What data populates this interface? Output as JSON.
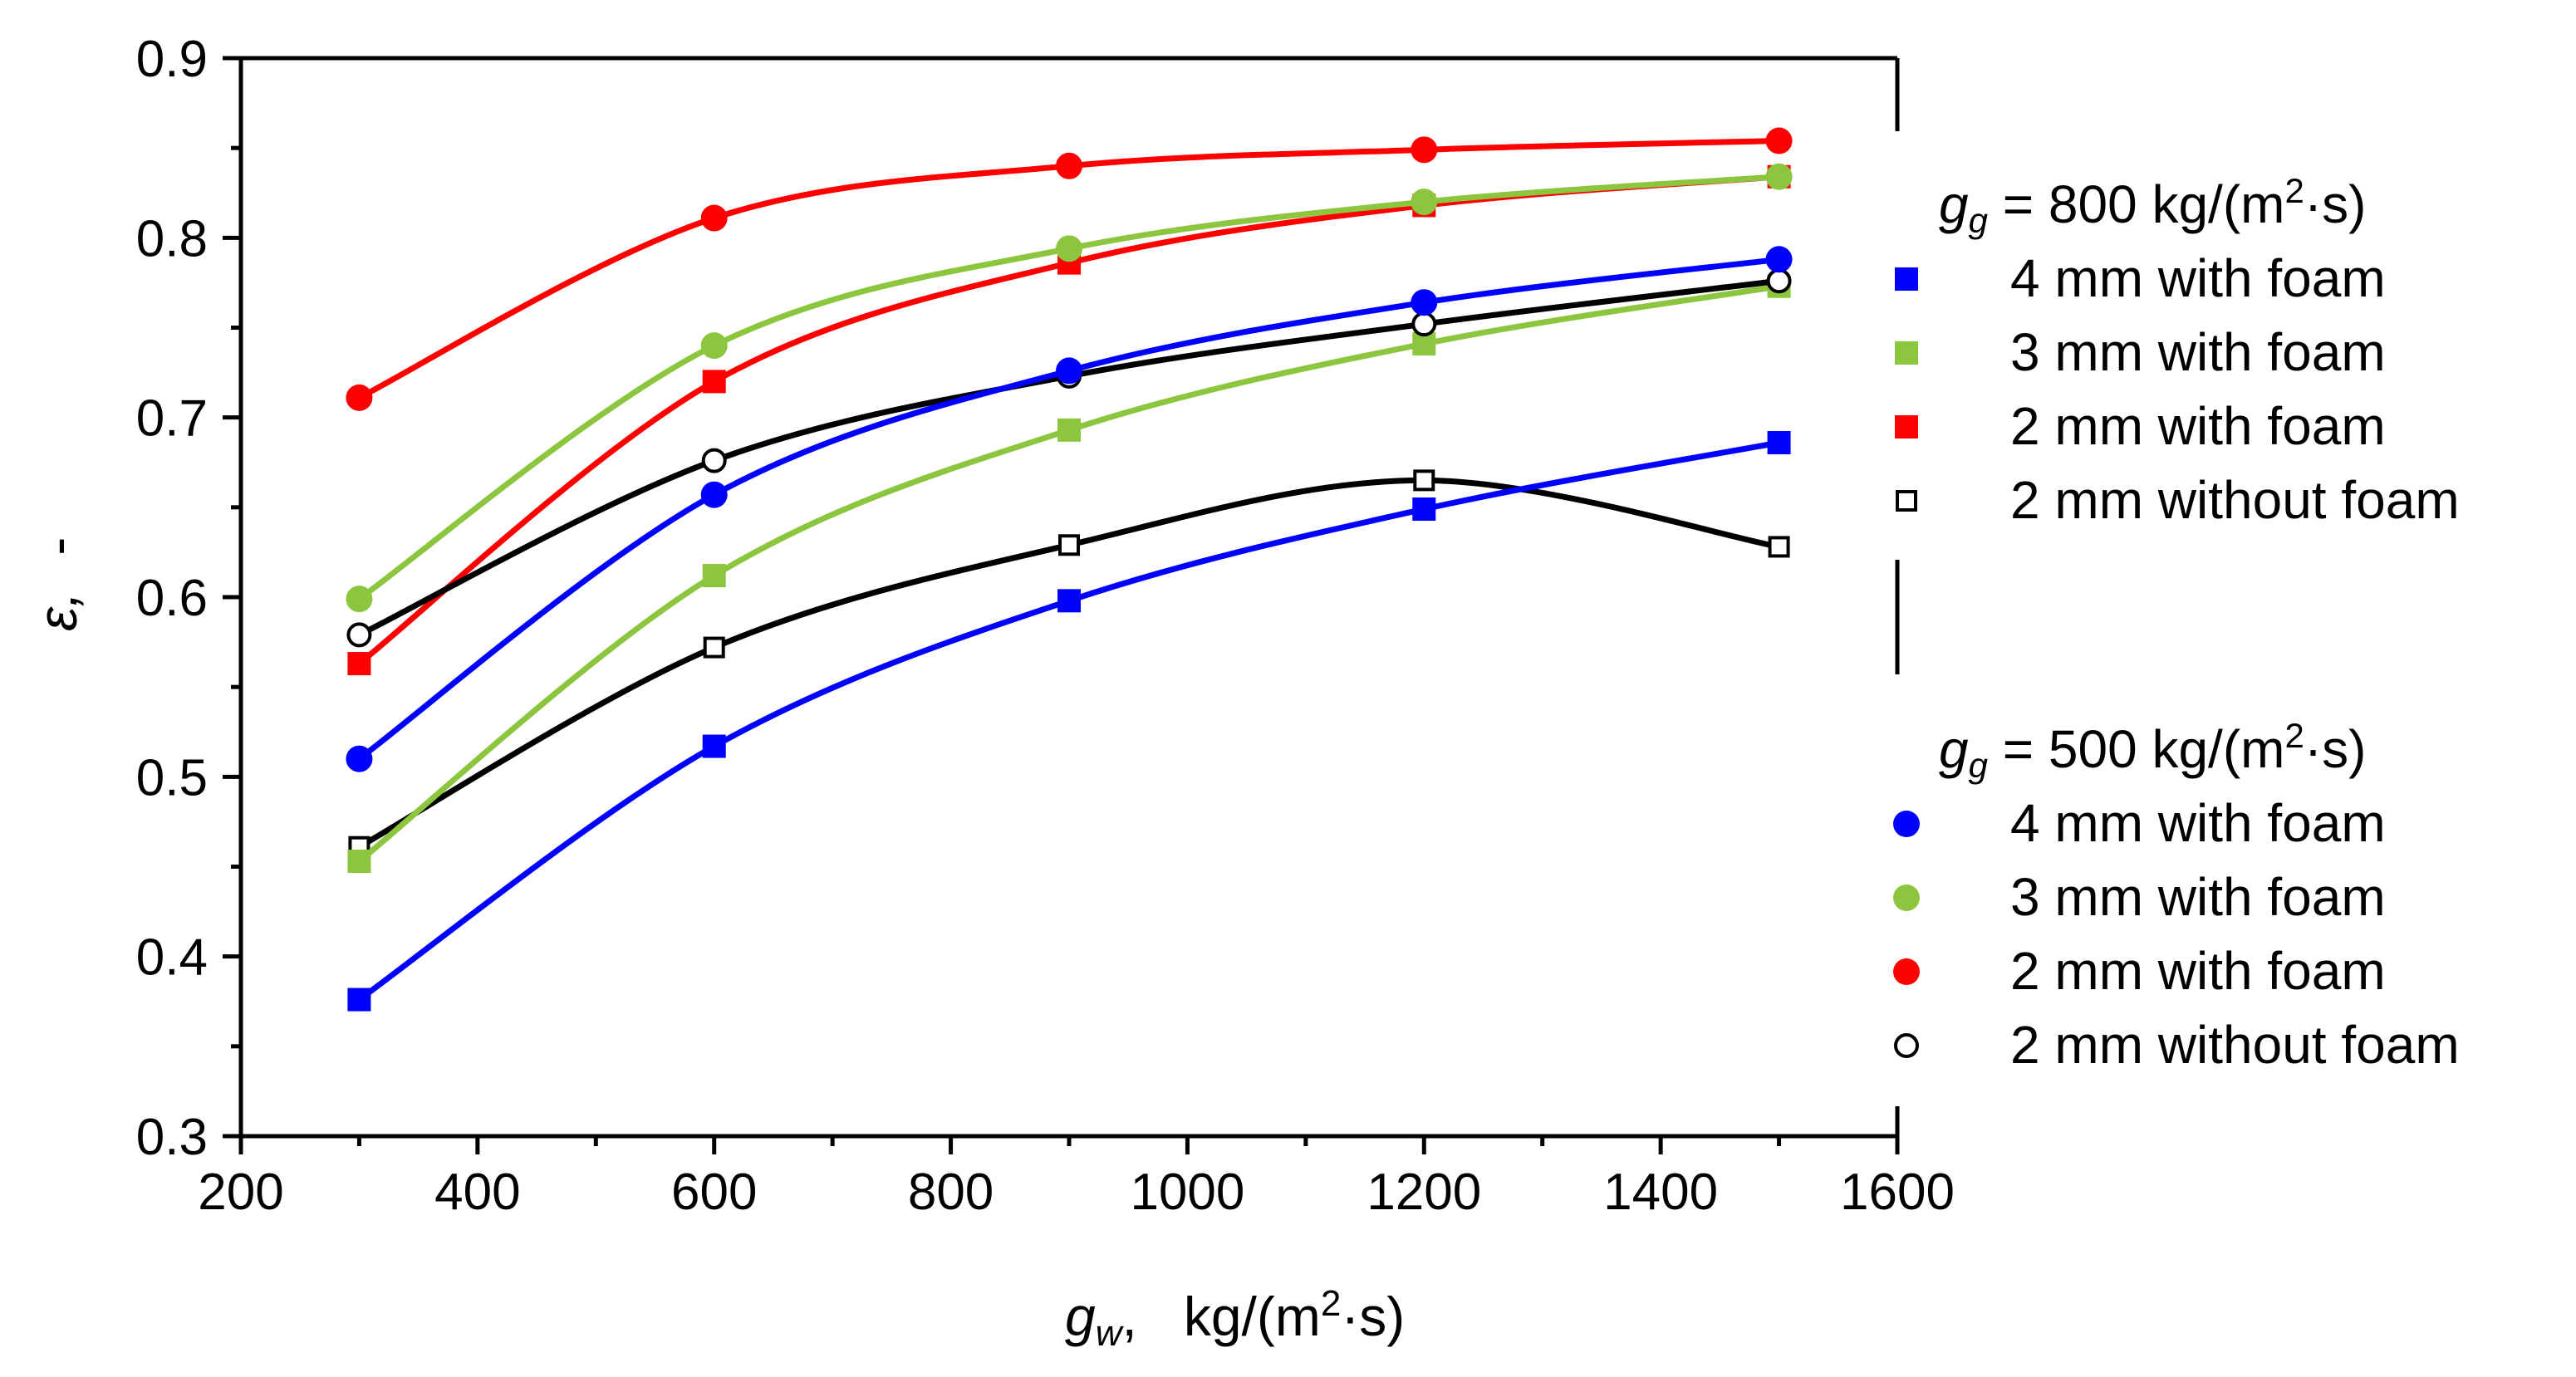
{
  "chart_data": {
    "type": "line",
    "title": "",
    "xlabel": {
      "symbol": "g",
      "sub": "w",
      "comma": ",",
      "unit_pre": "kg/(m",
      "unit_sup": "2",
      "unit_post": "·s)"
    },
    "ylabel": {
      "symbol": "ε,",
      "unit": "-"
    },
    "xlim": [
      200,
      1600
    ],
    "ylim": [
      0.3,
      0.9
    ],
    "x_major_ticks": [
      200,
      400,
      600,
      800,
      1000,
      1200,
      1400,
      1600
    ],
    "x_tick_labels": [
      "200",
      "400",
      "600",
      "800",
      "1000",
      "1200",
      "1400",
      "1600"
    ],
    "x_minor_ticks": [
      300,
      500,
      700,
      900,
      1100,
      1300,
      1500
    ],
    "y_major_ticks": [
      0.3,
      0.4,
      0.5,
      0.6,
      0.7,
      0.8,
      0.9
    ],
    "y_tick_labels": [
      "0.3",
      "0.4",
      "0.5",
      "0.6",
      "0.7",
      "0.8",
      "0.9"
    ],
    "y_minor_ticks": [
      0.35,
      0.45,
      0.55,
      0.65,
      0.75,
      0.85
    ],
    "x": [
      300,
      600,
      900,
      1200,
      1500
    ],
    "legend": {
      "groups": [
        {
          "head_symbol": "g",
          "head_sub": "g",
          "head_text": " = 800 kg/(m",
          "head_sup": "2",
          "head_post": "·s)",
          "marker": "square",
          "entries": [
            "4 mm with foam",
            "3 mm with foam",
            "2 mm with foam",
            "2 mm without foam"
          ]
        },
        {
          "head_symbol": "g",
          "head_sub": "g",
          "head_text": " = 500 kg/(m",
          "head_sup": "2",
          "head_post": "·s)",
          "marker": "circle",
          "entries": [
            "4 mm with foam",
            "3 mm with foam",
            "2 mm with foam",
            "2 mm without foam"
          ]
        }
      ]
    },
    "series": [
      {
        "name": "gg=800, 4 mm with foam",
        "marker": "square",
        "filled": true,
        "color": "#0000ff",
        "values": [
          0.376,
          0.517,
          0.598,
          0.649,
          0.686
        ]
      },
      {
        "name": "gg=800, 3 mm with foam",
        "marker": "square",
        "filled": true,
        "color": "#8cc63f",
        "values": [
          0.453,
          0.612,
          0.693,
          0.741,
          0.773
        ]
      },
      {
        "name": "gg=800, 2 mm with foam",
        "marker": "square",
        "filled": true,
        "color": "#ff0000",
        "values": [
          0.563,
          0.72,
          0.786,
          0.818,
          0.834
        ]
      },
      {
        "name": "gg=800, 2 mm without foam",
        "marker": "square",
        "filled": false,
        "color": "#000000",
        "values": [
          0.461,
          0.572,
          0.629,
          0.665,
          0.628
        ]
      },
      {
        "name": "gg=500, 4 mm with foam",
        "marker": "circle",
        "filled": true,
        "color": "#0000ff",
        "values": [
          0.51,
          0.657,
          0.726,
          0.764,
          0.788
        ]
      },
      {
        "name": "gg=500, 3 mm with foam",
        "marker": "circle",
        "filled": true,
        "color": "#8cc63f",
        "values": [
          0.599,
          0.74,
          0.794,
          0.82,
          0.834
        ]
      },
      {
        "name": "gg=500, 2 mm with foam",
        "marker": "circle",
        "filled": true,
        "color": "#ff0000",
        "values": [
          0.711,
          0.811,
          0.84,
          0.849,
          0.854
        ]
      },
      {
        "name": "gg=500, 2 mm without foam",
        "marker": "circle",
        "filled": false,
        "color": "#000000",
        "values": [
          0.579,
          0.676,
          0.723,
          0.752,
          0.776
        ]
      }
    ],
    "draw_order": [
      3,
      1,
      2,
      7,
      4,
      5,
      0,
      6
    ]
  }
}
